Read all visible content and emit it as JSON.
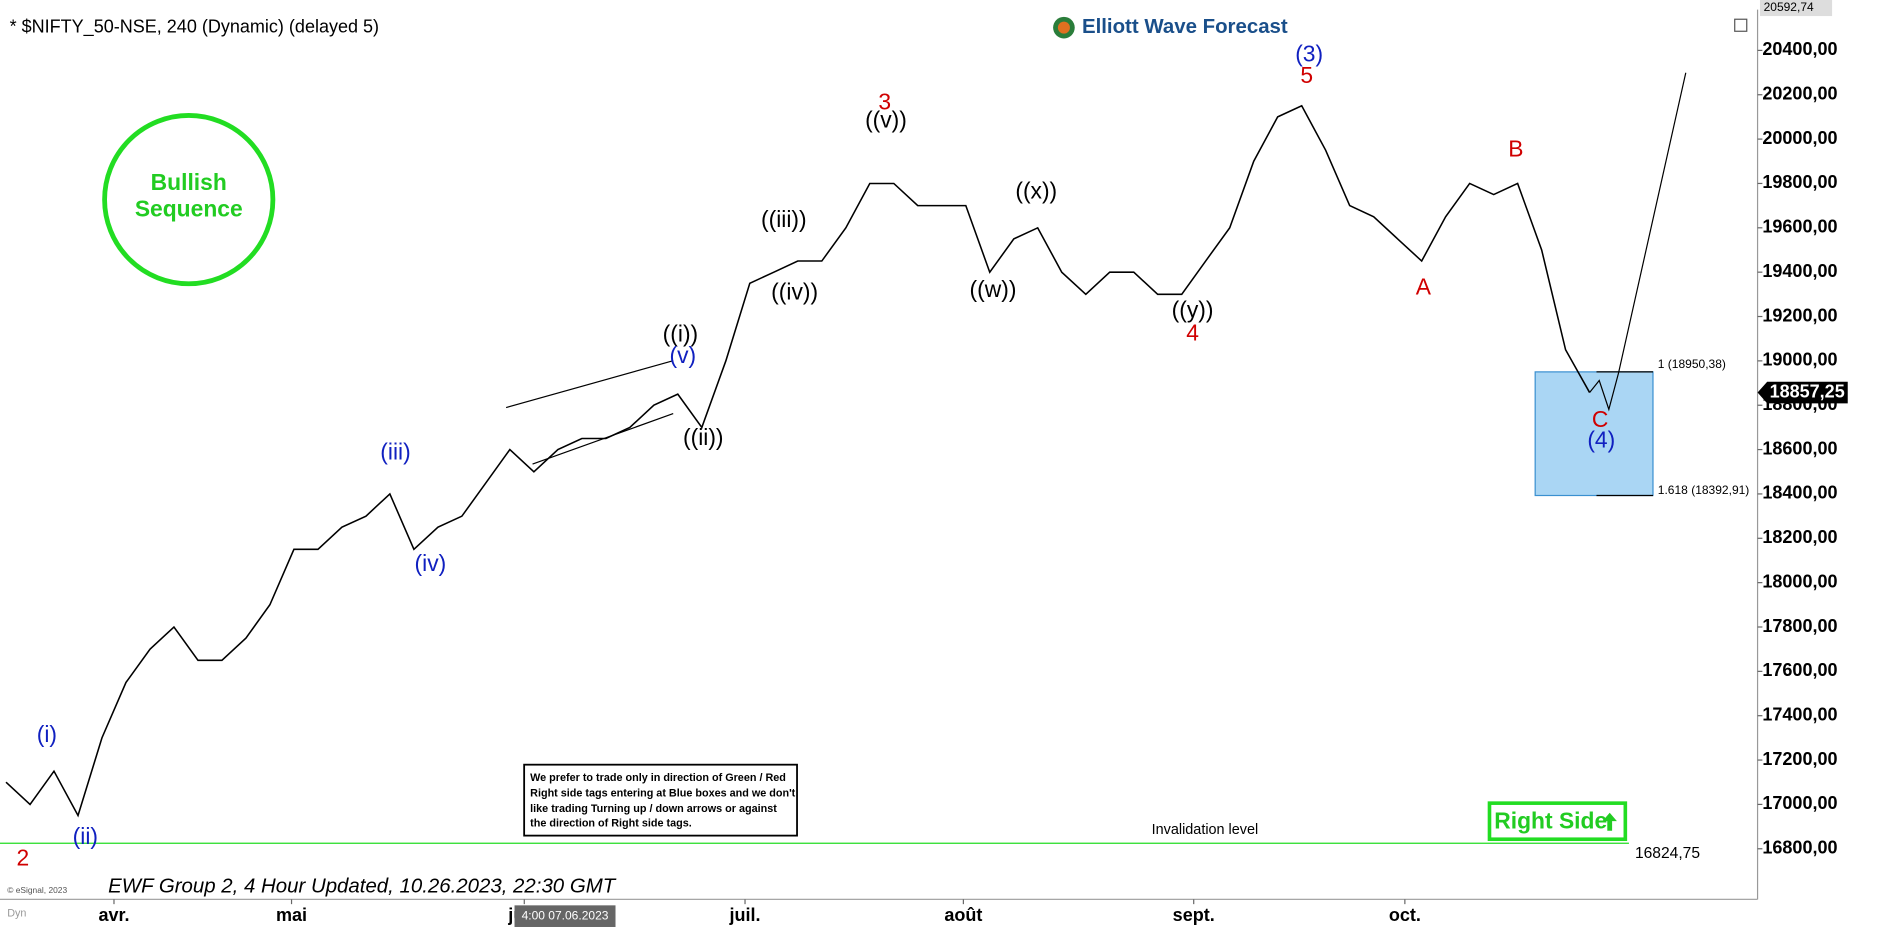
{
  "header": {
    "title": "* $NIFTY_50-NSE, 240 (Dynamic) (delayed 5)",
    "logo": "Elliott Wave Forecast"
  },
  "badge": [
    "Bullish",
    "Sequence"
  ],
  "disclaimer": [
    "We prefer to trade only in direction of Green / Red",
    "Right side tags entering at Blue boxes and we don't",
    "like trading Turning up / down arrows or against",
    "the direction of Right side tags."
  ],
  "right_side": "Right Side",
  "footer": "EWF  Group 2, 4 Hour Updated, 10.26.2023, 22:30 GMT",
  "copyright": "© eSignal, 2023",
  "dyn": "Dyn",
  "crosshair": "4:00 07.06.2023",
  "annotations": [
    "2",
    "(i)",
    "(ii)",
    "(iii)",
    "(iv)",
    "((i))",
    "(v)",
    "((ii))",
    "((iii))",
    "((iv))",
    "3",
    "((v))",
    "((w))",
    "((x))",
    "((y))",
    "4",
    "(3)",
    "5",
    "A",
    "B",
    "C",
    "(4)"
  ],
  "chart_data": {
    "type": "line",
    "color": "#000000",
    "x": [
      0,
      1,
      2,
      3,
      4,
      5,
      6,
      7,
      8,
      9,
      10,
      11,
      12,
      13,
      14,
      15,
      16,
      17,
      18,
      19,
      20,
      21,
      22,
      23,
      24,
      25,
      26,
      27,
      28,
      29,
      30,
      31,
      32,
      33,
      34,
      35,
      36,
      37,
      38,
      39,
      40,
      41,
      42,
      43,
      44,
      45,
      46,
      47,
      48,
      49,
      50,
      51,
      52,
      53,
      54,
      55,
      56,
      57,
      58,
      59,
      60,
      61,
      62,
      63,
      64,
      65,
      66
    ],
    "values": [
      17100,
      17000,
      17150,
      16950,
      17300,
      17550,
      17700,
      17800,
      17650,
      17650,
      17750,
      17900,
      18150,
      18150,
      18250,
      18300,
      18400,
      18150,
      18250,
      18300,
      18450,
      18600,
      18500,
      18600,
      18650,
      18650,
      18700,
      18800,
      18850,
      18700,
      19000,
      19350,
      19400,
      19450,
      19450,
      19600,
      19800,
      19800,
      19700,
      19700,
      19700,
      19400,
      19550,
      19600,
      19400,
      19300,
      19400,
      19400,
      19300,
      19300,
      19450,
      19600,
      19900,
      20100,
      20150,
      19950,
      19700,
      19650,
      19550,
      19450,
      19650,
      19800,
      19750,
      19800,
      19500,
      19050,
      18857.25
    ],
    "xlim": [
      0,
      73
    ],
    "xticks": [
      {
        "value": 4.5,
        "label": "avr."
      },
      {
        "value": 11.9,
        "label": "mai"
      },
      {
        "value": 21.6,
        "label": "juin"
      },
      {
        "value": 30.8,
        "label": "juil."
      },
      {
        "value": 39.9,
        "label": "août"
      },
      {
        "value": 49.5,
        "label": "sept."
      },
      {
        "value": 58.3,
        "label": "oct."
      }
    ],
    "ylim": [
      16572,
      20573
    ],
    "yticks": [
      {
        "value": 16800,
        "label": "16800,00"
      },
      {
        "value": 17000,
        "label": "17000,00"
      },
      {
        "value": 17200,
        "label": "17200,00"
      },
      {
        "value": 17400,
        "label": "17400,00"
      },
      {
        "value": 17600,
        "label": "17600,00"
      },
      {
        "value": 17800,
        "label": "17800,00"
      },
      {
        "value": 18000,
        "label": "18000,00"
      },
      {
        "value": 18200,
        "label": "18200,00"
      },
      {
        "value": 18400,
        "label": "18400,00"
      },
      {
        "value": 18600,
        "label": "18600,00"
      },
      {
        "value": 18800,
        "label": "18800,00"
      },
      {
        "value": 19000,
        "label": "19000,00"
      },
      {
        "value": 19200,
        "label": "19200,00"
      },
      {
        "value": 19400,
        "label": "19400,00"
      },
      {
        "value": 19600,
        "label": "19600,00"
      },
      {
        "value": 19800,
        "label": "19800,00"
      },
      {
        "value": 20000,
        "label": "20000,00"
      },
      {
        "value": 20200,
        "label": "20200,00"
      },
      {
        "value": 20400,
        "label": "20400,00"
      }
    ],
    "top_price": {
      "value": 20592.74,
      "label": "20592,74"
    },
    "last_price": {
      "value": 18857.25,
      "label": "18857,25"
    },
    "invalidation": {
      "value": 16824.75,
      "label": "16824,75",
      "text": "Invalidation level"
    },
    "box": {
      "top": 18950.38,
      "bottom": 18392.91,
      "top_label": "1 (18950,38)",
      "bottom_label": "1.618 (18392,91)"
    }
  }
}
